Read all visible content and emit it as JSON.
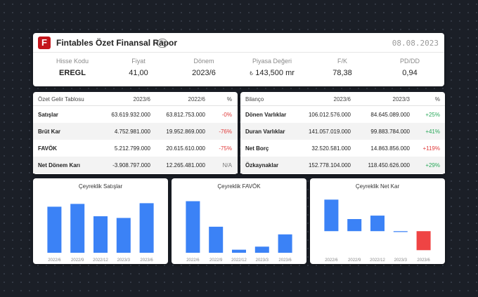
{
  "header": {
    "logo_letter": "F",
    "title": "Fintables Özet Finansal Rapor",
    "currency_badge": "TL",
    "date": "08.08.2023",
    "kpis": [
      {
        "label": "Hisse Kodu",
        "value": "EREGL"
      },
      {
        "label": "Fiyat",
        "value": "41,00"
      },
      {
        "label": "Dönem",
        "value": "2023/6"
      },
      {
        "label": "Piyasa Değeri",
        "value": "143,500 mr",
        "prefix": "₺"
      },
      {
        "label": "F/K",
        "value": "78,38"
      },
      {
        "label": "PD/DD",
        "value": "0,94"
      }
    ]
  },
  "income": {
    "headers": [
      "Özet Gelir Tablosu",
      "2023/6",
      "2022/6",
      "%"
    ],
    "rows": [
      {
        "label": "Satışlar",
        "cur": "63.619.932.000",
        "prev": "63.812.753.000",
        "pct": "-0%",
        "status": "neg"
      },
      {
        "label": "Brüt Kar",
        "cur": "4.752.981.000",
        "prev": "19.952.869.000",
        "pct": "-76%",
        "status": "neg"
      },
      {
        "label": "FAVÖK",
        "cur": "5.212.799.000",
        "prev": "20.615.610.000",
        "pct": "-75%",
        "status": "neg"
      },
      {
        "label": "Net Dönem Karı",
        "cur": "-3.908.797.000",
        "prev": "12.265.481.000",
        "pct": "N/A",
        "status": "na"
      }
    ]
  },
  "balance": {
    "headers": [
      "Bilanço",
      "2023/6",
      "2023/3",
      "%"
    ],
    "rows": [
      {
        "label": "Dönen Varlıklar",
        "cur": "106.012.576.000",
        "prev": "84.645.089.000",
        "pct": "+25%",
        "status": "pos"
      },
      {
        "label": "Duran Varlıklar",
        "cur": "141.057.019.000",
        "prev": "99.883.784.000",
        "pct": "+41%",
        "status": "pos"
      },
      {
        "label": "Net Borç",
        "cur": "32.520.581.000",
        "prev": "14.863.856.000",
        "pct": "+119%",
        "status": "neg"
      },
      {
        "label": "Özkaynaklar",
        "cur": "152.778.104.000",
        "prev": "118.450.626.000",
        "pct": "+29%",
        "status": "pos"
      }
    ]
  },
  "colors": {
    "bar": "#3b82f6",
    "bar_negative": "#ef4444",
    "positive": "#29a85a",
    "negative": "#e03b3b"
  },
  "chart_data": [
    {
      "type": "bar",
      "title": "Çeyreklik Satışlar",
      "categories": [
        "2022/6",
        "2022/9",
        "2022/12",
        "2023/3",
        "2023/6"
      ],
      "values": [
        32.8,
        34.8,
        26.0,
        24.8,
        35.3
      ],
      "ylim": [
        0,
        40
      ]
    },
    {
      "type": "bar",
      "title": "Çeyreklik FAVÖK",
      "categories": [
        "2022/6",
        "2022/9",
        "2022/12",
        "2023/3",
        "2023/6"
      ],
      "values": [
        10.1,
        5.1,
        0.6,
        1.2,
        3.6
      ],
      "ylim": [
        0,
        11
      ]
    },
    {
      "type": "bar",
      "title": "Çeyreklik Net Kar",
      "categories": [
        "2022/6",
        "2022/9",
        "2022/12",
        "2023/3",
        "2023/6"
      ],
      "values": [
        7.3,
        2.8,
        3.6,
        -0.2,
        -4.4
      ],
      "ylim": [
        -5,
        8
      ]
    }
  ]
}
